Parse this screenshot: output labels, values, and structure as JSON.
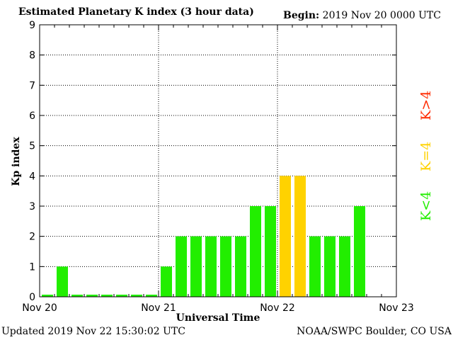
{
  "header": {
    "title": "Estimated Planetary K index (3 hour data)",
    "begin_label": "Begin:",
    "begin_value": "2019 Nov 20 0000 UTC"
  },
  "footer": {
    "updated": "Updated 2019 Nov 22 15:30:02 UTC",
    "credit": "NOAA/SWPC Boulder, CO USA"
  },
  "legend": {
    "high": "K>4",
    "equal": "K=4",
    "low": "K<4",
    "high_color": "#ff2a00",
    "equal_color": "#ffd200",
    "low_color": "#22ee00"
  },
  "chart_data": {
    "type": "bar",
    "xlabel": "Universal Time",
    "ylabel": "Kp index",
    "ylim": [
      0,
      9
    ],
    "yticks": [
      "0",
      "1",
      "2",
      "3",
      "4",
      "5",
      "6",
      "7",
      "8",
      "9"
    ],
    "xticks": [
      "Nov 20",
      "Nov 21",
      "Nov 22",
      "Nov 23"
    ],
    "bars_per_day": 8,
    "values": [
      0,
      1,
      0,
      0,
      0,
      0,
      0,
      0,
      1,
      2,
      2,
      2,
      2,
      2,
      3,
      3,
      4,
      4,
      2,
      2,
      2,
      3
    ],
    "grid": true,
    "colors": {
      "low": "#22ee00",
      "equal": "#ffd200",
      "high": "#ff2a00"
    }
  }
}
